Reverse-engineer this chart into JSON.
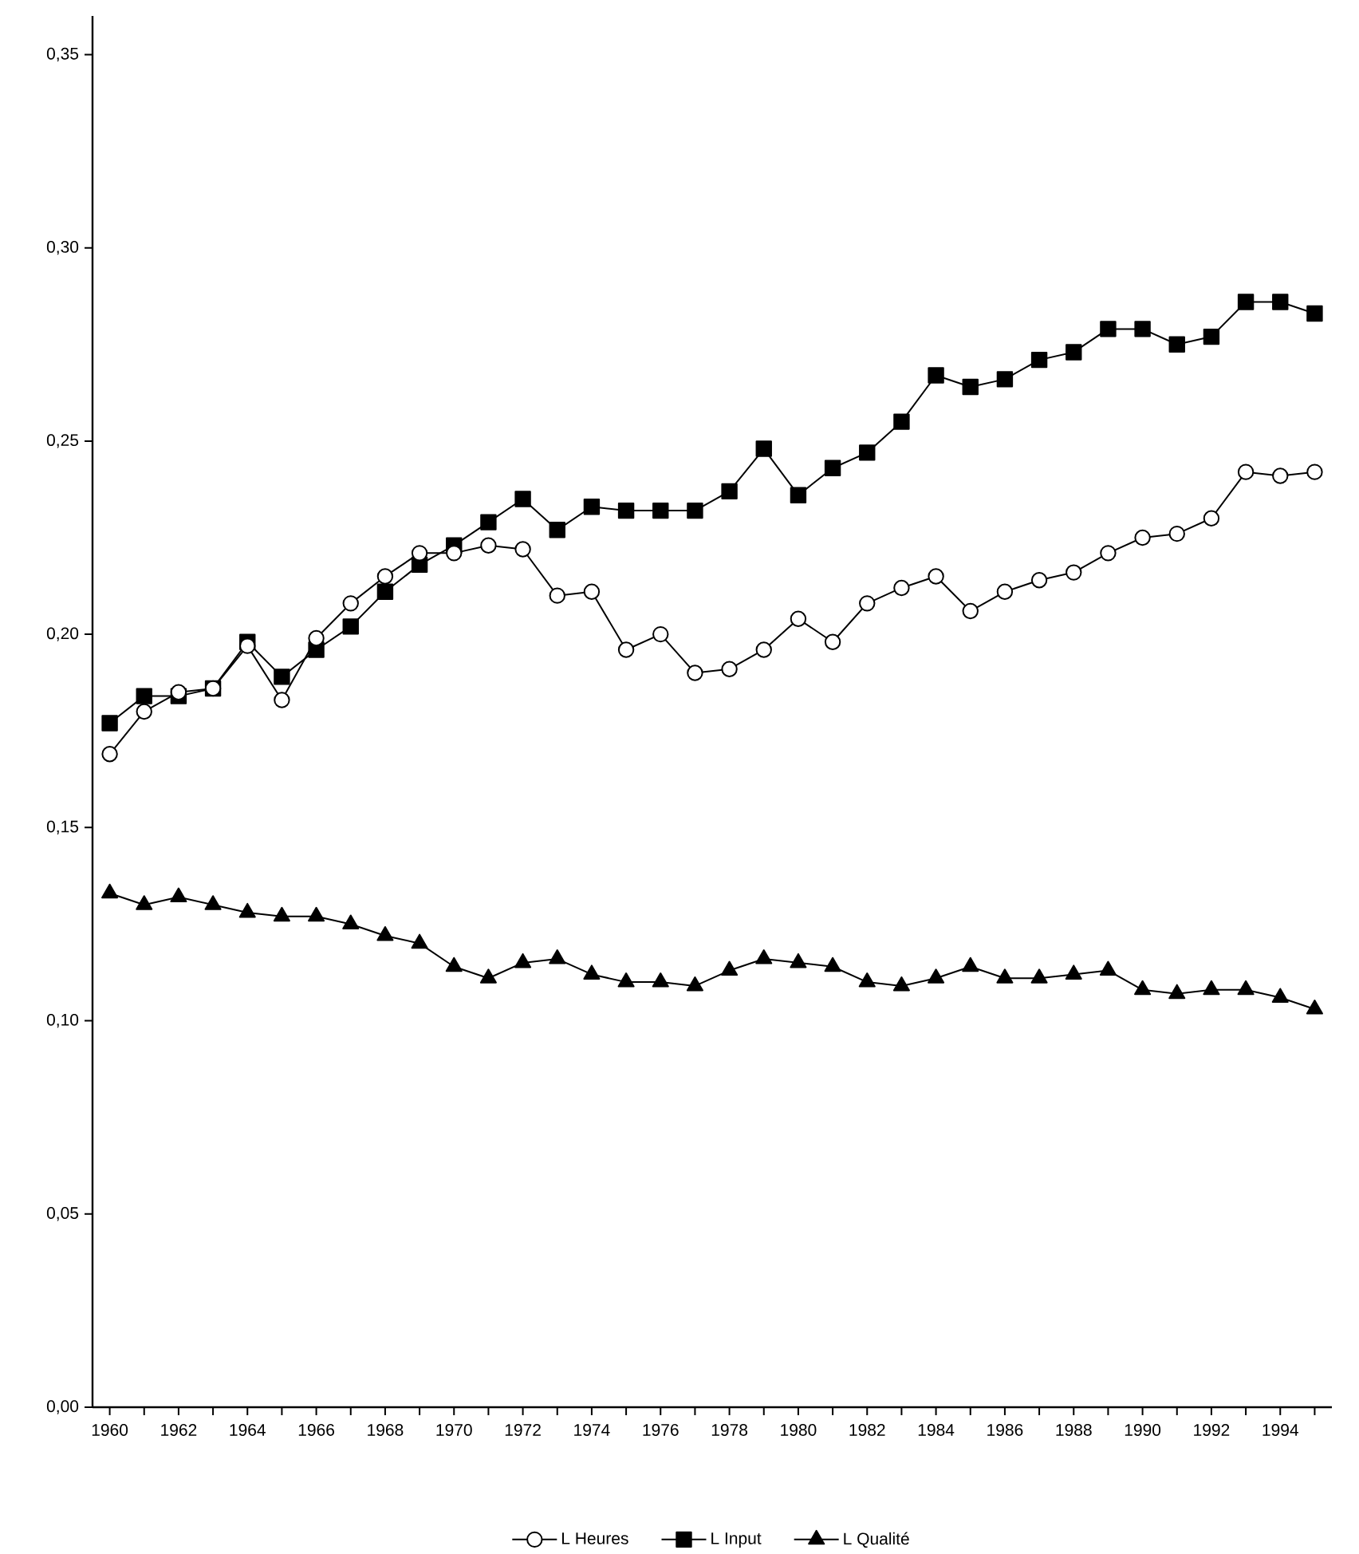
{
  "chart_data": {
    "type": "line",
    "x": [
      1960,
      1961,
      1962,
      1963,
      1964,
      1965,
      1966,
      1967,
      1968,
      1969,
      1970,
      1971,
      1972,
      1973,
      1974,
      1975,
      1976,
      1977,
      1978,
      1979,
      1980,
      1981,
      1982,
      1983,
      1984,
      1985,
      1986,
      1987,
      1988,
      1989,
      1990,
      1991,
      1992,
      1993,
      1994,
      1995
    ],
    "series": [
      {
        "name": "L Heures",
        "color": "#000000",
        "marker": "circle",
        "values": [
          0.169,
          0.18,
          0.185,
          0.186,
          0.197,
          0.183,
          0.199,
          0.208,
          0.215,
          0.221,
          0.221,
          0.223,
          0.222,
          0.21,
          0.211,
          0.196,
          0.2,
          0.19,
          0.191,
          0.196,
          0.204,
          0.198,
          0.208,
          0.212,
          0.215,
          0.206,
          0.211,
          0.214,
          0.216,
          0.221,
          0.225,
          0.226,
          0.23,
          0.242,
          0.241,
          0.242
        ]
      },
      {
        "name": "L Input",
        "color": "#000000",
        "marker": "square",
        "values": [
          0.177,
          0.184,
          0.184,
          0.186,
          0.198,
          0.189,
          0.196,
          0.202,
          0.211,
          0.218,
          0.223,
          0.229,
          0.235,
          0.227,
          0.233,
          0.232,
          0.232,
          0.232,
          0.237,
          0.248,
          0.236,
          0.243,
          0.247,
          0.255,
          0.267,
          0.264,
          0.266,
          0.271,
          0.273,
          0.279,
          0.279,
          0.275,
          0.277,
          0.286,
          0.286,
          0.283
        ]
      },
      {
        "name": "L Qualité",
        "color": "#000000",
        "marker": "triangle",
        "values": [
          0.133,
          0.13,
          0.132,
          0.13,
          0.128,
          0.127,
          0.127,
          0.125,
          0.122,
          0.12,
          0.114,
          0.111,
          0.115,
          0.116,
          0.112,
          0.11,
          0.11,
          0.109,
          0.113,
          0.116,
          0.115,
          0.114,
          0.11,
          0.109,
          0.111,
          0.114,
          0.111,
          0.111,
          0.112,
          0.113,
          0.108,
          0.107,
          0.108,
          0.108,
          0.106,
          0.103
        ]
      }
    ],
    "xlim": [
      1959.5,
      1995.5
    ],
    "xticks": [
      1960,
      {
        "value": 1961,
        "label": null
      },
      1962,
      {
        "value": 1963,
        "label": null
      },
      1964,
      {
        "value": 1965,
        "label": null
      },
      1966,
      {
        "value": 1967,
        "label": null
      },
      1968,
      {
        "value": 1969,
        "label": null
      },
      1970,
      {
        "value": 1971,
        "label": null
      },
      1972,
      {
        "value": 1973,
        "label": null
      },
      1974,
      {
        "value": 1975,
        "label": null
      },
      1976,
      {
        "value": 1977,
        "label": null
      },
      1978,
      {
        "value": 1979,
        "label": null
      },
      1980,
      {
        "value": 1981,
        "label": null
      },
      1982,
      {
        "value": 1983,
        "label": null
      },
      1984,
      {
        "value": 1985,
        "label": null
      },
      1986,
      {
        "value": 1987,
        "label": null
      },
      1988,
      {
        "value": 1989,
        "label": null
      },
      1990,
      {
        "value": 1991,
        "label": null
      },
      1992,
      {
        "value": 1993,
        "label": null
      },
      1994,
      {
        "value": 1995,
        "label": null
      }
    ],
    "ylim": [
      0,
      0.36
    ],
    "yticks": [
      {
        "value": 0,
        "label": "0,00"
      },
      {
        "value": 0.05,
        "label": "0,05"
      },
      {
        "value": 0.1,
        "label": "0,10"
      },
      {
        "value": 0.15,
        "label": "0,15"
      },
      {
        "value": 0.2,
        "label": "0,20"
      },
      {
        "value": 0.25,
        "label": "0,25"
      },
      {
        "value": 0.3,
        "label": "0,30"
      },
      {
        "value": 0.35,
        "label": "0,35"
      }
    ],
    "grid": false,
    "legend": "bottom",
    "line_style": "solid"
  }
}
